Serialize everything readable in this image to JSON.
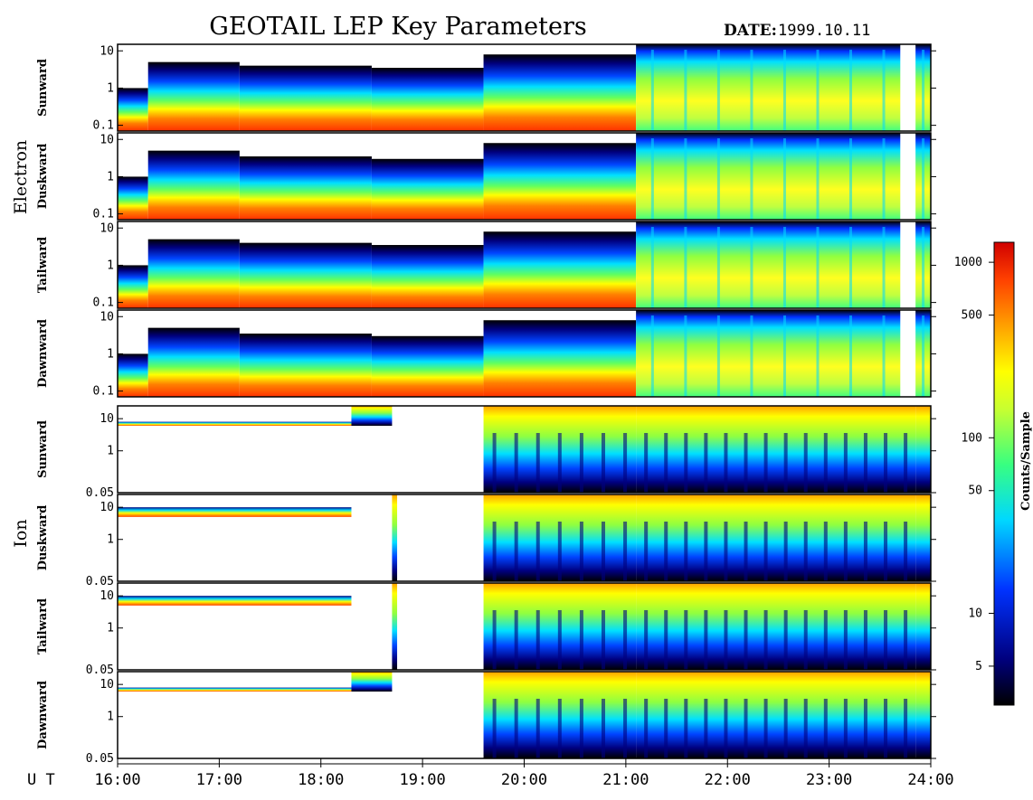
{
  "title": "GEOTAIL LEP Key Parameters",
  "date_label": "DATE:",
  "date_value": "1999.10.11",
  "colorbar": {
    "label": "Counts/Sample",
    "scale": "log",
    "range": [
      3,
      1300
    ],
    "ticks": [
      "1000",
      "500",
      "100",
      "50",
      "10",
      "5"
    ],
    "tick_values": [
      1000,
      500,
      100,
      50,
      10,
      5
    ],
    "colors": [
      "#000000",
      "#00007f",
      "#0033ff",
      "#00d8ff",
      "#38ff80",
      "#c8ff30",
      "#ffff00",
      "#ffa000",
      "#ff4000",
      "#d00000"
    ]
  },
  "x_axis": {
    "prefix": "U T",
    "ticks": [
      "16:00",
      "17:00",
      "18:00",
      "19:00",
      "20:00",
      "21:00",
      "22:00",
      "23:00",
      "24:00"
    ]
  },
  "groups": [
    {
      "name": "Electron",
      "y_ticks": [
        "10",
        "1",
        "0.1"
      ]
    },
    {
      "name": "Ion",
      "y_ticks": [
        "10",
        "1",
        "0.05"
      ]
    }
  ],
  "panel_labels": {
    "electron": [
      "Sunward",
      "Duskward",
      "Tailward",
      "Dawnward"
    ],
    "ion": [
      "Sunward",
      "Duskward",
      "Tailward",
      "Dawnward"
    ]
  },
  "chart_data": {
    "type": "heatmap",
    "title": "GEOTAIL LEP Key Parameters",
    "date": "1999.10.11",
    "x_range_hours": [
      16,
      24
    ],
    "electron_y_range": [
      0.07,
      15
    ],
    "ion_y_range": [
      0.05,
      25
    ],
    "y_scale": "log",
    "electron_panels": [
      {
        "name": "Sunward",
        "segments": [
          {
            "x": [
              16.0,
              16.3
            ],
            "top": 1.0,
            "core": 0.2
          },
          {
            "x": [
              16.3,
              17.2
            ],
            "top": 5.0,
            "core": 0.25
          },
          {
            "x": [
              17.2,
              18.5
            ],
            "top": 4.0,
            "core": 0.25
          },
          {
            "x": [
              18.5,
              19.6
            ],
            "top": 3.5,
            "core": 0.25
          },
          {
            "x": [
              19.6,
              21.1
            ],
            "top": 8.0,
            "core": 0.2
          },
          {
            "x": [
              21.1,
              23.7
            ],
            "top": 15.0,
            "core": 0.07
          },
          {
            "x": [
              23.85,
              24.0
            ],
            "top": 15.0,
            "core": 0.07
          }
        ]
      },
      {
        "name": "Duskward",
        "segments": [
          {
            "x": [
              16.0,
              16.3
            ],
            "top": 1.0,
            "core": 0.2
          },
          {
            "x": [
              16.3,
              17.2
            ],
            "top": 5.0,
            "core": 0.25
          },
          {
            "x": [
              17.2,
              18.5
            ],
            "top": 3.5,
            "core": 0.25
          },
          {
            "x": [
              18.5,
              19.6
            ],
            "top": 3.0,
            "core": 0.25
          },
          {
            "x": [
              19.6,
              21.1
            ],
            "top": 8.0,
            "core": 0.2
          },
          {
            "x": [
              21.1,
              23.7
            ],
            "top": 15.0,
            "core": 0.07
          },
          {
            "x": [
              23.85,
              24.0
            ],
            "top": 15.0,
            "core": 0.07
          }
        ]
      },
      {
        "name": "Tailward",
        "segments": [
          {
            "x": [
              16.0,
              16.3
            ],
            "top": 1.0,
            "core": 0.2
          },
          {
            "x": [
              16.3,
              17.2
            ],
            "top": 5.0,
            "core": 0.25
          },
          {
            "x": [
              17.2,
              18.5
            ],
            "top": 4.0,
            "core": 0.25
          },
          {
            "x": [
              18.5,
              19.6
            ],
            "top": 3.5,
            "core": 0.25
          },
          {
            "x": [
              19.6,
              21.1
            ],
            "top": 8.0,
            "core": 0.2
          },
          {
            "x": [
              21.1,
              23.7
            ],
            "top": 15.0,
            "core": 0.07
          },
          {
            "x": [
              23.85,
              24.0
            ],
            "top": 15.0,
            "core": 0.07
          }
        ]
      },
      {
        "name": "Dawnward",
        "segments": [
          {
            "x": [
              16.0,
              16.3
            ],
            "top": 1.0,
            "core": 0.2
          },
          {
            "x": [
              16.3,
              17.2
            ],
            "top": 5.0,
            "core": 0.25
          },
          {
            "x": [
              17.2,
              18.5
            ],
            "top": 3.5,
            "core": 0.25
          },
          {
            "x": [
              18.5,
              19.6
            ],
            "top": 3.0,
            "core": 0.25
          },
          {
            "x": [
              19.6,
              21.1
            ],
            "top": 8.0,
            "core": 0.2
          },
          {
            "x": [
              21.1,
              23.7
            ],
            "top": 15.0,
            "core": 0.07
          },
          {
            "x": [
              23.85,
              24.0
            ],
            "top": 15.0,
            "core": 0.07
          }
        ]
      }
    ],
    "ion_panels": [
      {
        "name": "Sunward",
        "band": {
          "x": [
            16.0,
            18.3
          ],
          "low": 6.0,
          "high": 8.0
        },
        "blocks": [
          {
            "x": [
              18.3,
              18.7
            ],
            "low": 6.0,
            "high": 25.0
          },
          {
            "x": [
              19.6,
              21.1
            ],
            "low": 0.05,
            "high": 25.0
          },
          {
            "x": [
              21.1,
              23.85
            ],
            "low": 0.05,
            "high": 25.0
          },
          {
            "x": [
              23.85,
              24.0
            ],
            "low": 0.05,
            "high": 25.0
          }
        ]
      },
      {
        "name": "Duskward",
        "band": {
          "x": [
            16.0,
            18.3
          ],
          "low": 5.0,
          "high": 10.0
        },
        "blocks": [
          {
            "x": [
              18.7,
              18.75
            ],
            "low": 0.05,
            "high": 25.0
          },
          {
            "x": [
              19.6,
              21.1
            ],
            "low": 0.05,
            "high": 25.0
          },
          {
            "x": [
              21.1,
              23.85
            ],
            "low": 0.05,
            "high": 25.0
          },
          {
            "x": [
              23.85,
              24.0
            ],
            "low": 0.05,
            "high": 25.0
          }
        ]
      },
      {
        "name": "Tailward",
        "band": {
          "x": [
            16.0,
            18.3
          ],
          "low": 5.0,
          "high": 10.0
        },
        "blocks": [
          {
            "x": [
              18.7,
              18.75
            ],
            "low": 0.05,
            "high": 25.0
          },
          {
            "x": [
              19.6,
              21.1
            ],
            "low": 0.05,
            "high": 25.0
          },
          {
            "x": [
              21.1,
              23.85
            ],
            "low": 0.05,
            "high": 25.0
          },
          {
            "x": [
              23.85,
              24.0
            ],
            "low": 0.05,
            "high": 25.0
          }
        ]
      },
      {
        "name": "Dawnward",
        "band": {
          "x": [
            16.0,
            18.3
          ],
          "low": 6.0,
          "high": 8.0
        },
        "blocks": [
          {
            "x": [
              18.3,
              18.7
            ],
            "low": 6.0,
            "high": 25.0
          },
          {
            "x": [
              19.6,
              21.1
            ],
            "low": 0.05,
            "high": 25.0
          },
          {
            "x": [
              21.1,
              23.85
            ],
            "low": 0.05,
            "high": 25.0
          },
          {
            "x": [
              23.85,
              24.0
            ],
            "low": 0.05,
            "high": 25.0
          }
        ]
      }
    ]
  }
}
